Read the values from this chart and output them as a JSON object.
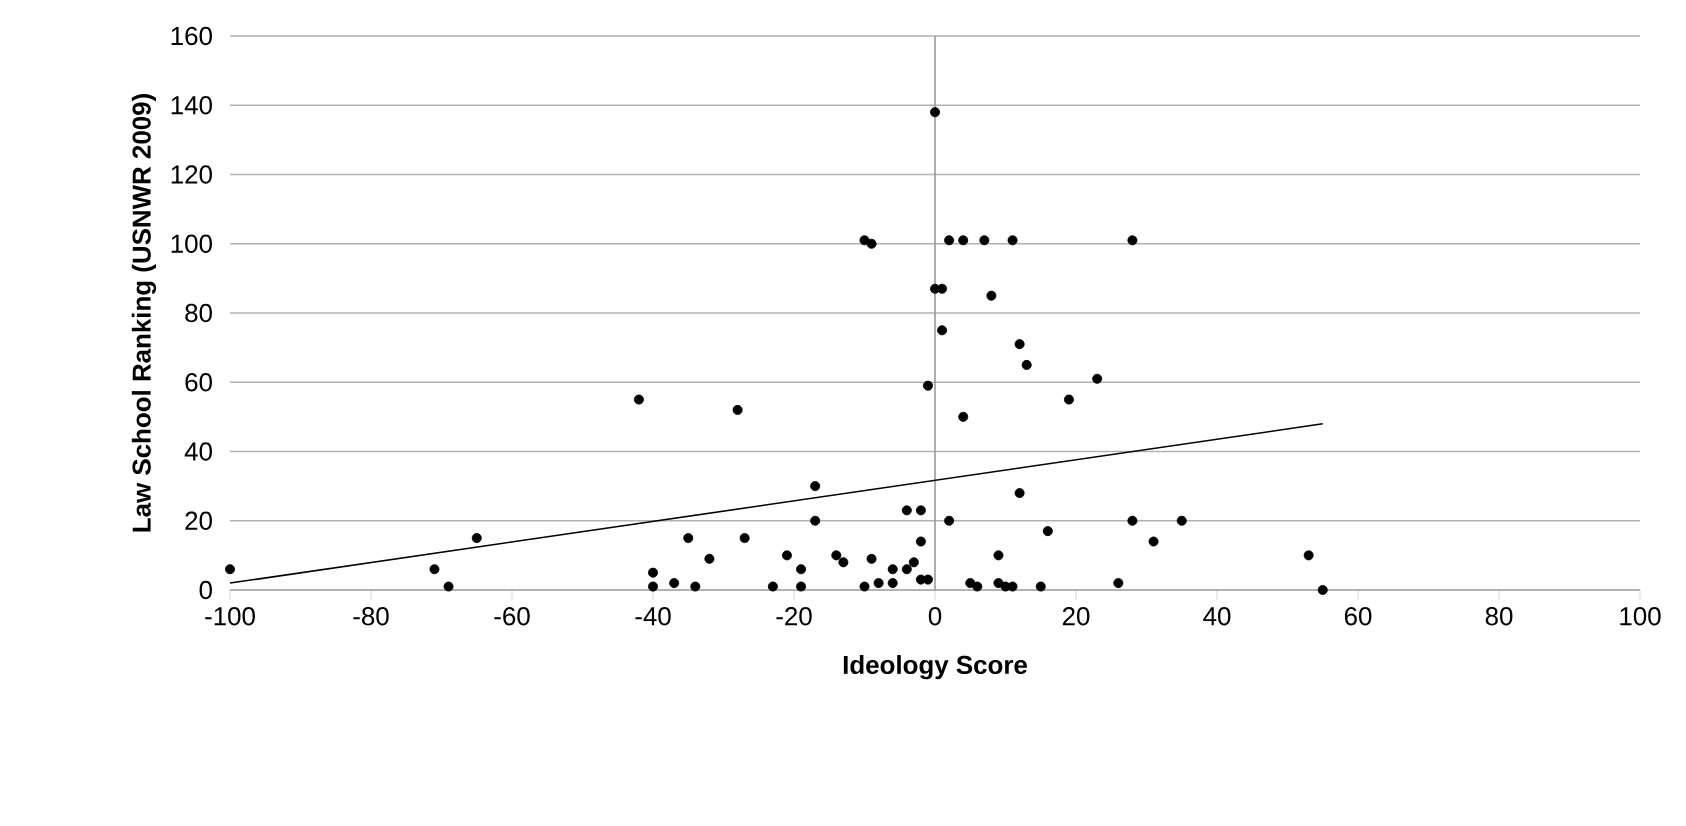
{
  "chart_data": {
    "type": "scatter",
    "xlabel": "Ideology Score",
    "ylabel": "Law School Ranking (USNWR 2009)",
    "xlim": [
      -100,
      100
    ],
    "xticks": [
      -100,
      -80,
      -60,
      -40,
      -20,
      0,
      20,
      40,
      60,
      80,
      100
    ],
    "ylim": [
      0,
      160
    ],
    "yticks": [
      0,
      20,
      40,
      60,
      80,
      100,
      120,
      140,
      160
    ],
    "grid": "y",
    "series": [
      {
        "color": "#000000",
        "marker": "circle",
        "x": [
          -100,
          -71,
          -69,
          -65,
          -42,
          -40,
          -40,
          -37,
          -35,
          -34,
          -32,
          -28,
          -27,
          -23,
          -21,
          -19,
          -19,
          -17,
          -17,
          -14,
          -13,
          -10,
          -9,
          -9,
          -10,
          -8,
          -6,
          -6,
          -4,
          -3,
          -4,
          -2,
          -2,
          -2,
          -1,
          -1,
          0,
          0,
          1,
          1,
          2,
          4,
          2,
          4,
          5,
          6,
          7,
          8,
          9,
          9,
          10,
          11,
          11,
          12,
          13,
          12,
          15,
          16,
          19,
          23,
          26,
          28,
          28,
          31,
          35,
          53,
          55
        ],
        "values": [
          6,
          6,
          1,
          15,
          55,
          5,
          1,
          2,
          15,
          1,
          9,
          52,
          15,
          1,
          10,
          6,
          1,
          30,
          20,
          10,
          8,
          101,
          100,
          9,
          1,
          2,
          6,
          2,
          6,
          8,
          23,
          23,
          14,
          3,
          3,
          59,
          138,
          87,
          87,
          75,
          101,
          101,
          20,
          50,
          2,
          1,
          101,
          85,
          2,
          10,
          1,
          1,
          101,
          71,
          65,
          28,
          1,
          17,
          55,
          61,
          2,
          101,
          20,
          14,
          20,
          10,
          0
        ]
      },
      {
        "type": "line",
        "color": "#000000",
        "marker": "none",
        "x": [
          -100,
          55
        ],
        "values": [
          2,
          48
        ]
      }
    ]
  }
}
